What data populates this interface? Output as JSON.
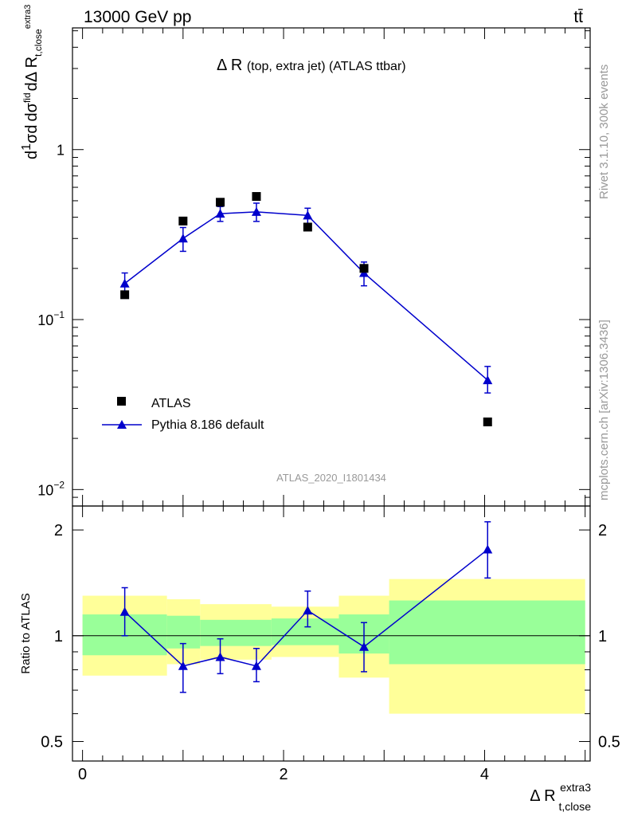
{
  "header": {
    "energy_label": "13000 GeV pp",
    "process_label": "tt̄"
  },
  "side_labels": {
    "rivet": "Rivet 3.1.10,  300k events",
    "mcplots": "mcplots.cern.ch [arXiv:1306.3436]"
  },
  "chart_data": [
    {
      "type": "scatter",
      "title": "Δ R (top, extra jet) (ATLAS ttbar)",
      "title_main": "Δ R",
      "title_sub": "(top, extra jet) (ATLAS ttbar)",
      "ylabel": "1/σ dσ/dΔR",
      "yscale": "log",
      "ylim": [
        0.008,
        5.2
      ],
      "xlim": [
        -0.1,
        5.05
      ],
      "y_ticks": [
        "10^-2",
        "10^-1",
        "1"
      ],
      "analysis_id": "ATLAS_2020_I1801434",
      "legend_position": "bottom-left",
      "series": [
        {
          "name": "ATLAS",
          "marker": "square",
          "color": "#000000",
          "x": [
            0.42,
            1.0,
            1.37,
            1.73,
            2.24,
            2.8,
            4.03
          ],
          "y": [
            0.14,
            0.38,
            0.49,
            0.53,
            0.35,
            0.2,
            0.025
          ]
        },
        {
          "name": "Pythia 8.186 default",
          "marker": "triangle",
          "color": "#0000cc",
          "x": [
            0.42,
            1.0,
            1.37,
            1.73,
            2.24,
            2.8,
            4.03
          ],
          "y": [
            0.163,
            0.3,
            0.42,
            0.43,
            0.41,
            0.188,
            0.044
          ],
          "y_err_low": [
            0.147,
            0.252,
            0.378,
            0.378,
            0.368,
            0.158,
            0.037
          ],
          "y_err_high": [
            0.188,
            0.348,
            0.462,
            0.484,
            0.452,
            0.218,
            0.053
          ]
        }
      ]
    },
    {
      "type": "scatter",
      "ylabel": "Ratio to ATLAS",
      "xlabel": "Δ R",
      "xlabel_sup": "extra3",
      "xlabel_sub": "t,close",
      "ylim": [
        0.44,
        2.34
      ],
      "xlim": [
        -0.1,
        5.05
      ],
      "x_ticks": [
        0,
        2,
        4
      ],
      "y_ticks": [
        0.5,
        1,
        2
      ],
      "uncertainty_bands": {
        "bin_edges": [
          0,
          0.84,
          1.17,
          1.88,
          2.55,
          3.05,
          5.0
        ],
        "inner_color": "#99ff99",
        "outer_color": "#ffff99",
        "outer_low": [
          0.77,
          0.83,
          0.855,
          0.87,
          0.76,
          0.6
        ],
        "outer_high": [
          1.3,
          1.27,
          1.23,
          1.21,
          1.3,
          1.45
        ],
        "inner_low": [
          0.88,
          0.92,
          0.935,
          0.94,
          0.89,
          0.83
        ],
        "inner_high": [
          1.15,
          1.14,
          1.11,
          1.12,
          1.15,
          1.26
        ]
      },
      "series": [
        {
          "name": "Pythia 8.186 default",
          "color": "#0000cc",
          "x": [
            0.42,
            1.0,
            1.37,
            1.73,
            2.24,
            2.8,
            4.03
          ],
          "y": [
            1.17,
            0.82,
            0.87,
            0.82,
            1.18,
            0.93,
            1.76
          ],
          "y_err_low": [
            1.0,
            0.69,
            0.78,
            0.74,
            1.06,
            0.79,
            1.46
          ],
          "y_err_high": [
            1.37,
            0.95,
            0.98,
            0.92,
            1.34,
            1.09,
            2.11
          ]
        }
      ]
    }
  ]
}
